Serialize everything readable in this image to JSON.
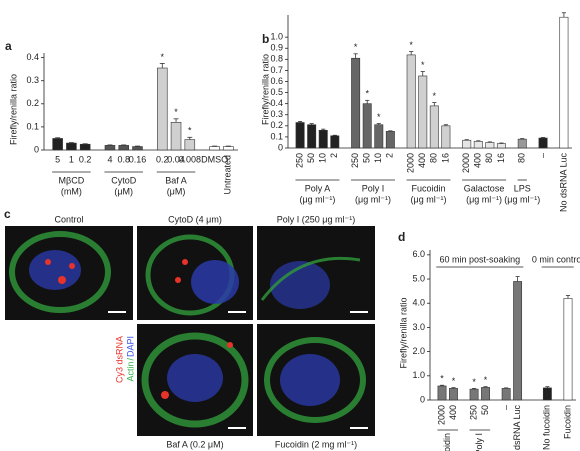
{
  "chart_data": [
    {
      "panel": "a",
      "type": "bar",
      "y_label": "Firefly/renilla ratio",
      "ylim": [
        0,
        0.42
      ],
      "yticks": [
        0,
        0.1,
        0.2,
        0.3,
        0.4
      ],
      "groups": [
        {
          "name": "MβCD",
          "unit": "(mM)",
          "color": "#222222",
          "categories": [
            "5",
            "1",
            "0.2"
          ],
          "values": [
            0.05,
            0.03,
            0.025
          ],
          "errors": [
            0.003,
            0.002,
            0.002
          ]
        },
        {
          "name": "CytoD",
          "unit": "(μM)",
          "color": "#555555",
          "categories": [
            "4",
            "0.8",
            "0.16"
          ],
          "values": [
            0.02,
            0.02,
            0.015
          ],
          "errors": [
            0.002,
            0.002,
            0.002
          ]
        },
        {
          "name": "Baf A",
          "unit": "(μM)",
          "color": "#d0d0d0",
          "categories": [
            "0.2",
            "0.04",
            "0.008"
          ],
          "values": [
            0.355,
            0.12,
            0.045
          ],
          "errors": [
            0.02,
            0.015,
            0.01
          ],
          "stars": [
            "*",
            "*",
            "*"
          ]
        },
        {
          "color": "#ffffff",
          "categories": [
            "DMSO",
            "Untreated"
          ],
          "values": [
            0.015,
            0.015
          ],
          "errors": [
            0.002,
            0.002
          ]
        }
      ]
    },
    {
      "panel": "b",
      "type": "bar",
      "y_label": "Firefly/renilla ratio",
      "ylim": [
        0,
        1.2
      ],
      "yticks": [
        0,
        0.1,
        0.2,
        0.3,
        0.4,
        0.5,
        0.6,
        0.7,
        0.8,
        0.9,
        {
          "value": 1,
          "label": "1.0"
        }
      ],
      "groups": [
        {
          "name": "Poly A",
          "unit": "(μg ml⁻¹)",
          "color": "#222222",
          "categories": [
            "250",
            "50",
            "10",
            "2"
          ],
          "values": [
            0.23,
            0.21,
            0.16,
            0.11
          ],
          "errors": [
            0.01,
            0.01,
            0.01,
            0.005
          ]
        },
        {
          "name": "Poly I",
          "unit": "(μg ml⁻¹)",
          "color": "#666666",
          "categories": [
            "250",
            "50",
            "10",
            "2"
          ],
          "values": [
            0.81,
            0.4,
            0.21,
            0.15
          ],
          "errors": [
            0.04,
            0.03,
            0.01,
            0.005
          ],
          "stars": [
            "*",
            "*",
            "*",
            null
          ]
        },
        {
          "name": "Fucoidin",
          "unit": "(μg ml⁻¹)",
          "color": "#d0d0d0",
          "categories": [
            "2000",
            "400",
            "80",
            "16"
          ],
          "values": [
            0.84,
            0.65,
            0.38,
            0.2
          ],
          "errors": [
            0.03,
            0.04,
            0.03,
            0.01
          ],
          "stars": [
            "*",
            "*",
            "*",
            null
          ]
        },
        {
          "name": "Galactose",
          "unit": "(μg ml⁻¹)",
          "color": "#e6e6e6",
          "categories": [
            "2000",
            "400",
            "80",
            "16"
          ],
          "values": [
            0.07,
            0.06,
            0.05,
            0.04
          ],
          "errors": [
            0.005,
            0.005,
            0.005,
            0.005
          ]
        },
        {
          "name": "LPS",
          "unit": "(μg ml⁻¹)",
          "color": "#999999",
          "categories": [
            "80"
          ],
          "values": [
            0.08
          ],
          "errors": [
            0.005
          ]
        },
        {
          "color": "#222222",
          "categories": [
            "–"
          ],
          "values": [
            0.09
          ],
          "errors": [
            0.005
          ]
        },
        {
          "color": "#ffffff",
          "categories": [
            "No dsRNA Luc"
          ],
          "values": [
            1.18
          ],
          "errors": [
            0.04
          ]
        }
      ]
    },
    {
      "panel": "d",
      "type": "bar",
      "y_label": "Firefly/renilla ratio",
      "ylim": [
        0,
        6.2
      ],
      "yticks": [
        0,
        {
          "value": 1,
          "label": "1.0"
        },
        {
          "value": 2,
          "label": "2.0"
        },
        {
          "value": 3,
          "label": "3.0"
        },
        {
          "value": 4,
          "label": "4.0"
        },
        {
          "value": 5,
          "label": "5.0"
        },
        {
          "value": 6,
          "label": "6.0"
        }
      ],
      "sections": [
        {
          "title": "60 min post-soaking",
          "groups": [
            {
              "name": "Fucoidin",
              "color": "#777777",
              "categories": [
                "2000",
                "400"
              ],
              "values": [
                0.58,
                0.48
              ],
              "errors": [
                0.03,
                0.03
              ],
              "stars": [
                "*",
                "*"
              ]
            },
            {
              "name": "Poly I",
              "color": "#777777",
              "categories": [
                "250",
                "50"
              ],
              "values": [
                0.45,
                0.52
              ],
              "errors": [
                0.03,
                0.03
              ],
              "stars": [
                "*",
                "*"
              ]
            },
            {
              "color": "#777777",
              "categories": [
                "–",
                "No dsRNA Luc"
              ],
              "values": [
                0.48,
                4.9
              ],
              "errors": [
                0.02,
                0.2
              ]
            }
          ]
        },
        {
          "title": "0 min control",
          "groups": [
            {
              "color": "#222222",
              "categories": [
                "No fucoidin"
              ],
              "values": [
                0.5
              ],
              "errors": [
                0.05
              ]
            },
            {
              "color": "#ffffff",
              "categories": [
                "Fucoidin"
              ],
              "values": [
                4.2
              ],
              "errors": [
                0.12
              ]
            }
          ]
        }
      ]
    }
  ],
  "panel_c": {
    "label": "c",
    "images": [
      {
        "title": "Control"
      },
      {
        "title": "CytoD (4 μm)"
      },
      {
        "title": "Poly I (250 μg ml⁻¹)"
      },
      {
        "title": "Baf A (0.2 μM)"
      },
      {
        "title": "Fucoidin (2 mg ml⁻¹)"
      }
    ],
    "legend": [
      {
        "text": "Cy3 dsRNA",
        "color": "#e8332a"
      },
      {
        "text": "DAPI",
        "color": "#3b55e6"
      },
      {
        "text": "/",
        "color": "#36b34a"
      },
      {
        "text": "Actin",
        "color": "#36b34a"
      }
    ]
  }
}
